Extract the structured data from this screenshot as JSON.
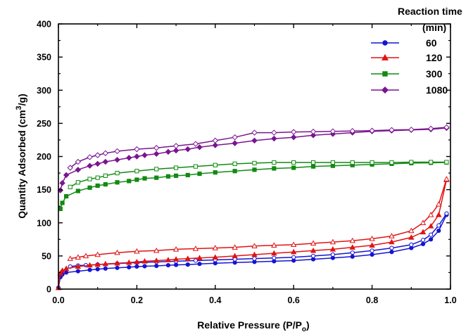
{
  "chart_data": {
    "type": "line",
    "title": "",
    "xlabel": "Relative Pressure (P/P",
    "xlabel_sub": "o",
    "xlabel_close": ")",
    "ylabel": "Quantity Adsorbed (cm",
    "ylabel_sup": "3",
    "ylabel_tail": "/g)",
    "xlim": [
      0,
      1.0
    ],
    "ylim": [
      0,
      400
    ],
    "x_ticks": [
      "0.0",
      "0.2",
      "0.4",
      "0.6",
      "0.8",
      "1.0"
    ],
    "y_ticks": [
      "0",
      "50",
      "100",
      "150",
      "200",
      "250",
      "300",
      "350",
      "400"
    ],
    "grid": false,
    "legend_title": [
      "Reaction time",
      "(min)"
    ],
    "legend_position": "top-right",
    "series": [
      {
        "name": "60",
        "color": "#1414d2",
        "marker": "circle",
        "adsorption": {
          "x": [
            0.0,
            0.005,
            0.01,
            0.02,
            0.05,
            0.08,
            0.1,
            0.12,
            0.15,
            0.18,
            0.2,
            0.22,
            0.25,
            0.28,
            0.3,
            0.33,
            0.36,
            0.4,
            0.45,
            0.5,
            0.55,
            0.6,
            0.65,
            0.7,
            0.75,
            0.8,
            0.85,
            0.9,
            0.93,
            0.95,
            0.97,
            0.99
          ],
          "y": [
            2,
            18,
            22,
            25,
            27,
            29,
            30,
            31,
            32,
            33,
            34,
            34.5,
            35,
            36,
            36.5,
            37,
            38,
            39,
            40,
            41,
            42,
            43,
            45,
            47,
            49,
            52,
            56,
            62,
            68,
            75,
            88,
            112
          ]
        },
        "desorption": {
          "x": [
            0.99,
            0.97,
            0.95,
            0.93,
            0.9,
            0.85,
            0.8,
            0.75,
            0.7,
            0.65,
            0.6,
            0.55,
            0.5,
            0.45,
            0.4,
            0.35,
            0.3,
            0.25,
            0.2,
            0.15,
            0.1,
            0.07,
            0.05,
            0.03
          ],
          "y": [
            114,
            96,
            82,
            74,
            67,
            62,
            58,
            55,
            52,
            50,
            48,
            47,
            46,
            45,
            44,
            43,
            42,
            41,
            40,
            38.5,
            37,
            36,
            35.5,
            34
          ]
        }
      },
      {
        "name": "120",
        "color": "#e01414",
        "marker": "triangle",
        "adsorption": {
          "x": [
            0.0,
            0.005,
            0.01,
            0.02,
            0.05,
            0.08,
            0.1,
            0.12,
            0.15,
            0.18,
            0.2,
            0.22,
            0.25,
            0.28,
            0.3,
            0.33,
            0.36,
            0.4,
            0.45,
            0.5,
            0.55,
            0.6,
            0.65,
            0.7,
            0.75,
            0.8,
            0.85,
            0.9,
            0.93,
            0.95,
            0.97,
            0.99
          ],
          "y": [
            2,
            24,
            28,
            31,
            34,
            36,
            37,
            38,
            39,
            40,
            41,
            42,
            43,
            44,
            45,
            46,
            47,
            48,
            50,
            52,
            54,
            56,
            58,
            60,
            63,
            66,
            71,
            78,
            86,
            95,
            112,
            165
          ]
        },
        "desorption": {
          "x": [
            0.99,
            0.97,
            0.95,
            0.93,
            0.9,
            0.85,
            0.8,
            0.75,
            0.7,
            0.65,
            0.6,
            0.55,
            0.5,
            0.45,
            0.4,
            0.35,
            0.3,
            0.25,
            0.2,
            0.15,
            0.1,
            0.07,
            0.05,
            0.03
          ],
          "y": [
            166,
            128,
            112,
            100,
            88,
            80,
            76,
            73,
            71,
            69,
            67,
            66,
            65,
            63,
            62,
            61,
            60,
            58,
            57,
            55,
            52,
            50,
            48,
            46
          ]
        }
      },
      {
        "name": "300",
        "color": "#128a12",
        "marker": "square",
        "adsorption": {
          "x": [
            0.005,
            0.01,
            0.02,
            0.05,
            0.08,
            0.1,
            0.12,
            0.15,
            0.18,
            0.2,
            0.22,
            0.25,
            0.28,
            0.3,
            0.33,
            0.36,
            0.4,
            0.45,
            0.5,
            0.55,
            0.6,
            0.65,
            0.7,
            0.75,
            0.8,
            0.85,
            0.9,
            0.95,
            0.99
          ],
          "y": [
            121,
            130,
            140,
            148,
            153,
            156,
            158,
            161,
            163,
            165,
            167,
            168,
            170,
            171,
            172,
            174,
            176,
            178,
            180,
            182,
            183,
            185,
            186,
            187,
            188,
            189,
            190,
            190.5,
            191
          ]
        },
        "desorption": {
          "x": [
            0.99,
            0.95,
            0.9,
            0.85,
            0.8,
            0.75,
            0.7,
            0.65,
            0.6,
            0.55,
            0.5,
            0.45,
            0.4,
            0.35,
            0.3,
            0.25,
            0.2,
            0.15,
            0.12,
            0.1,
            0.08,
            0.05,
            0.03
          ],
          "y": [
            191.5,
            191.5,
            191.5,
            191,
            191,
            191,
            191,
            191,
            191,
            191,
            190,
            189,
            187,
            185,
            183,
            181,
            178,
            175,
            171,
            168,
            166,
            161,
            154
          ]
        }
      },
      {
        "name": "1080",
        "color": "#7a1590",
        "marker": "diamond",
        "adsorption": {
          "x": [
            0.005,
            0.01,
            0.02,
            0.05,
            0.08,
            0.1,
            0.12,
            0.15,
            0.18,
            0.2,
            0.22,
            0.25,
            0.28,
            0.3,
            0.33,
            0.36,
            0.4,
            0.45,
            0.5,
            0.55,
            0.6,
            0.65,
            0.7,
            0.75,
            0.8,
            0.85,
            0.9,
            0.95,
            0.99
          ],
          "y": [
            149,
            160,
            172,
            180,
            186,
            189,
            192,
            195,
            198,
            200,
            202,
            204,
            207,
            209,
            211,
            214,
            217,
            220,
            224,
            227,
            229,
            232,
            234,
            236,
            238,
            239,
            240,
            241,
            243
          ]
        },
        "desorption": {
          "x": [
            0.99,
            0.95,
            0.9,
            0.85,
            0.8,
            0.75,
            0.7,
            0.65,
            0.6,
            0.55,
            0.5,
            0.45,
            0.4,
            0.35,
            0.3,
            0.25,
            0.2,
            0.15,
            0.12,
            0.1,
            0.08,
            0.05,
            0.03
          ],
          "y": [
            244,
            242,
            240.5,
            240,
            239,
            238.5,
            238,
            237.5,
            237,
            236,
            236,
            229,
            224,
            219,
            216,
            213,
            211,
            208,
            205,
            202,
            199,
            192,
            183
          ]
        }
      }
    ]
  }
}
